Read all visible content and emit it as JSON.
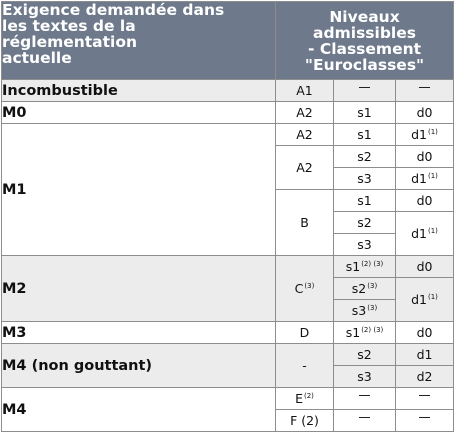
{
  "header": {
    "left": [
      "Exigence demandée dans",
      "les textes de la réglementation",
      "actuelle"
    ],
    "right": [
      "Niveaux",
      "admissibles",
      "- Classement",
      "\"Euroclasses\""
    ]
  },
  "rows": {
    "incombustible": {
      "label": "Incombustible",
      "class": "A1",
      "s": "_",
      "d": "_"
    },
    "m0": {
      "label": "M0",
      "class": "A2",
      "s": "s1",
      "d": "d0"
    },
    "m1": {
      "label": "M1",
      "r1": {
        "class": "A2",
        "s": "s1",
        "d": "d1",
        "d_note": "(1)"
      },
      "r2": {
        "class": "A2",
        "s": "s2",
        "d": "d0"
      },
      "r3": {
        "s": "s3",
        "d": "d1",
        "d_note": "(1)"
      },
      "r4": {
        "class": "B",
        "s": "s1",
        "d": "d0"
      },
      "r5": {
        "s": "s2",
        "d": "d1",
        "d_note": "(1)"
      },
      "r6": {
        "s": "s3"
      }
    },
    "m2": {
      "label": "M2",
      "class": "C",
      "class_note": "(3)",
      "r1": {
        "s": "s1",
        "s_note": "(2) (3)",
        "d": "d0"
      },
      "r2": {
        "s": "s2",
        "s_note": "(3)",
        "d": "d1",
        "d_note": "(1)"
      },
      "r3": {
        "s": "s3",
        "s_note": "(3)"
      }
    },
    "m3": {
      "label": "M3",
      "class": "D",
      "s": "s1",
      "s_note": "(2) (3)",
      "d": "d0"
    },
    "m4ng": {
      "label": "M4 (non gouttant)",
      "class": "-",
      "r1": {
        "s": "s2",
        "d": "d1"
      },
      "r2": {
        "s": "s3",
        "d": "d2"
      }
    },
    "m4": {
      "label": "M4",
      "r1": {
        "class": "E",
        "class_note": "(2)",
        "s": "_",
        "d": "_"
      },
      "r2": {
        "class": "F (2)",
        "s": "_",
        "d": "_"
      }
    }
  }
}
